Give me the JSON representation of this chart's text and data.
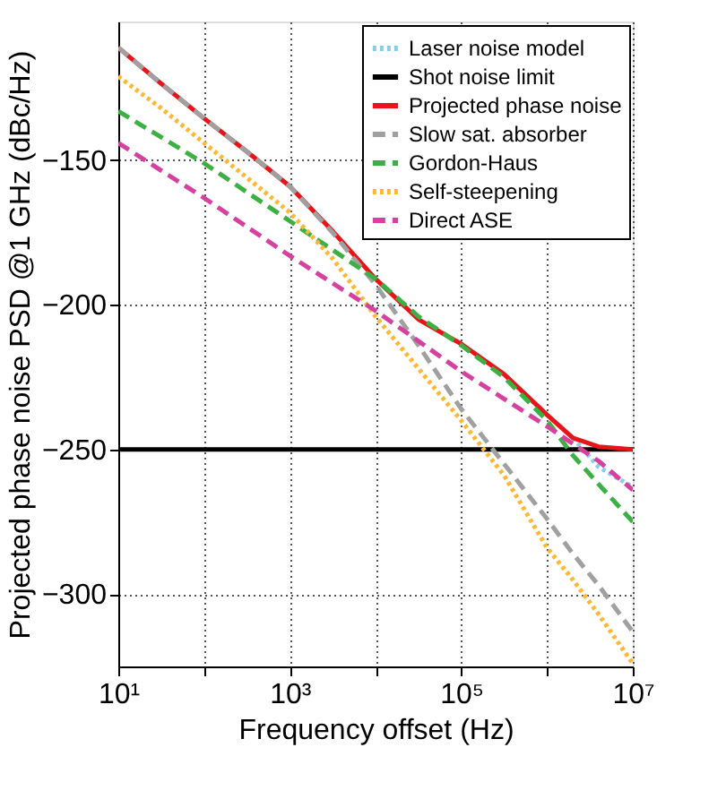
{
  "chart_data": {
    "type": "line",
    "xlabel": "Frequency offset (Hz)",
    "ylabel": "Projected phase noise PSD @1 GHz (dBc/Hz)",
    "log": "x",
    "xlim": [
      10,
      10000000
    ],
    "ylim": [
      -325,
      -102
    ],
    "xticks": [
      {
        "value": 10,
        "label": "10¹"
      },
      {
        "value": 100,
        "label": null
      },
      {
        "value": 1000,
        "label": "10³"
      },
      {
        "value": 10000,
        "label": null
      },
      {
        "value": 100000,
        "label": "10⁵"
      },
      {
        "value": 1000000,
        "label": null
      },
      {
        "value": 10000000,
        "label": "10⁷"
      }
    ],
    "yticks": [
      -150,
      -200,
      -250,
      -300
    ],
    "grid": true,
    "legend": "top right",
    "marker": "none",
    "x": [
      10,
      31.6,
      100,
      316,
      1000,
      3162,
      10000,
      31623,
      100000,
      316228,
      1000000,
      2000000,
      4000000,
      10000000
    ],
    "series": [
      {
        "name": "Laser noise model",
        "color": "#87ceeb",
        "line_style": "dotted",
        "values": [
          null,
          null,
          null,
          null,
          null,
          null,
          null,
          null,
          null,
          null,
          null,
          -246,
          -256,
          -263
        ]
      },
      {
        "name": "Shot noise limit",
        "color": "#000000",
        "line_style": "solid",
        "x": [
          10,
          10000000
        ],
        "values": [
          -250,
          -250
        ]
      },
      {
        "name": "Projected phase noise",
        "color": "#e8141a",
        "line_style": "solid",
        "values": [
          -111,
          -123.5,
          -135.5,
          -147,
          -159,
          -174.5,
          -191,
          -205,
          -213.5,
          -224,
          -238,
          -246,
          -249,
          -250
        ]
      },
      {
        "name": "Slow sat. absorber",
        "color": "#a0a0a0",
        "line_style": "dashed",
        "values": [
          -111,
          -123.5,
          -135.5,
          -147,
          -159,
          -175,
          -193,
          -214,
          -236,
          -255,
          -274,
          -286,
          -297,
          -313
        ]
      },
      {
        "name": "Gordon-Haus",
        "color": "#3cb043",
        "line_style": "dashed",
        "values": [
          -133,
          -142,
          -151,
          -161,
          -171,
          -181,
          -191,
          -204,
          -214,
          -225,
          -240,
          -252,
          -262,
          -275
        ]
      },
      {
        "name": "Self-steepening",
        "color": "#ffb833",
        "line_style": "dotted",
        "values": [
          -121,
          -132,
          -144,
          -156,
          -168,
          -184,
          -204,
          -222,
          -240,
          -259,
          -284,
          -295,
          -307,
          -324
        ]
      },
      {
        "name": "Direct ASE",
        "color": "#d6409f",
        "line_style": "dashed",
        "values": [
          -144,
          -153.5,
          -163,
          -173,
          -183,
          -192.5,
          -202,
          -212.5,
          -223,
          -232.5,
          -242,
          -248,
          -254,
          -264
        ]
      }
    ]
  }
}
